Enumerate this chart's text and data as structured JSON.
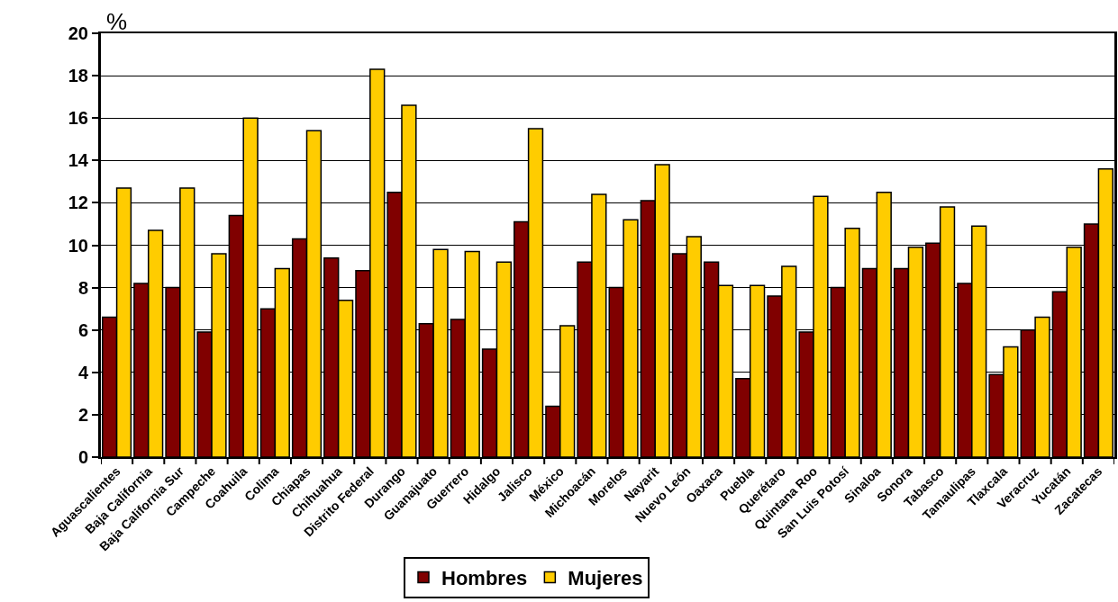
{
  "chart_data": {
    "type": "bar",
    "ylabel": "%",
    "categories": [
      "Aguascalientes",
      "Baja California",
      "Baja California Sur",
      "Campeche",
      "Coahuila",
      "Colima",
      "Chiapas",
      "Chihuahua",
      "Distrito Federal",
      "Durango",
      "Guanajuato",
      "Guerrero",
      "Hidalgo",
      "Jalisco",
      "México",
      "Michoacán",
      "Morelos",
      "Nayarit",
      "Nuevo León",
      "Oaxaca",
      "Puebla",
      "Querétaro",
      "Quintana Roo",
      "San Luis Potosí",
      "Sinaloa",
      "Sonora",
      "Tabasco",
      "Tamaulipas",
      "Tlaxcala",
      "Veracruz",
      "Yucatán",
      "Zacatecas"
    ],
    "series": [
      {
        "name": "Hombres",
        "color": "#800000",
        "values": [
          6.6,
          8.2,
          8.0,
          5.9,
          11.4,
          7.0,
          10.3,
          9.4,
          8.8,
          12.5,
          6.3,
          6.5,
          5.1,
          11.1,
          2.4,
          9.2,
          8.0,
          12.1,
          9.6,
          9.2,
          3.7,
          7.6,
          5.9,
          8.0,
          8.9,
          8.9,
          10.1,
          8.2,
          3.9,
          6.0,
          7.8,
          11.0
        ]
      },
      {
        "name": "Mujeres",
        "color": "#ffcc00",
        "values": [
          12.7,
          10.7,
          12.7,
          9.6,
          16.0,
          8.9,
          15.4,
          7.4,
          18.3,
          16.6,
          9.8,
          9.7,
          9.2,
          15.5,
          6.2,
          12.4,
          11.2,
          13.8,
          10.4,
          8.1,
          8.1,
          9.0,
          12.3,
          10.8,
          12.5,
          9.9,
          11.8,
          10.9,
          5.2,
          6.6,
          9.9,
          13.6
        ]
      }
    ],
    "ylim": [
      0,
      20
    ],
    "yticks": [
      0,
      2,
      4,
      6,
      8,
      10,
      12,
      14,
      16,
      18,
      20
    ],
    "grid": "y",
    "legend": "bottom"
  }
}
